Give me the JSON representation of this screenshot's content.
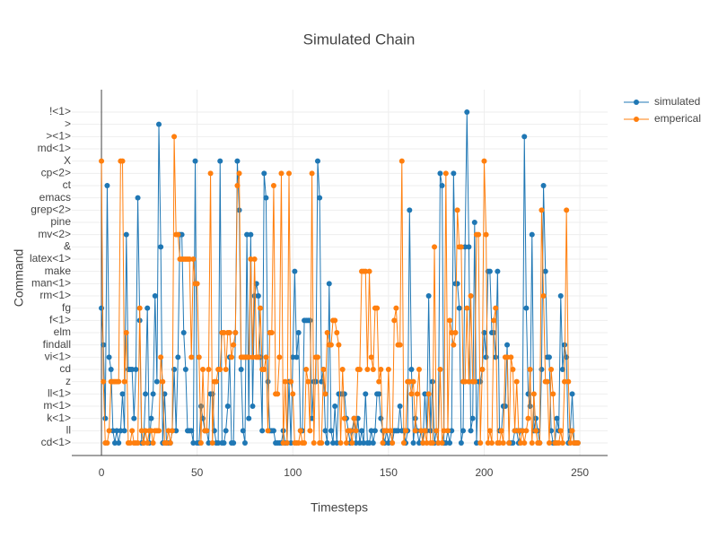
{
  "chart_data": {
    "type": "line",
    "title": "Simulated Chain",
    "x_label": "Timesteps",
    "y_label": "Command",
    "categories": [
      "cd<1>",
      "ll",
      "k<1>",
      "m<1>",
      "ll<1>",
      "z",
      "cd",
      "vi<1>",
      "findall",
      "elm",
      "f<1>",
      "fg",
      "rm<1>",
      "man<1>",
      "make",
      "latex<1>",
      "&",
      "mv<2>",
      "pine",
      "grep<2>",
      "emacs",
      "ct",
      "cp<2>",
      "X",
      "md<1>",
      "><1>",
      ">",
      "!<1>"
    ],
    "xlim": [
      -15.5,
      264.5
    ],
    "xticks": [
      0,
      50,
      100,
      150,
      200,
      250
    ],
    "grid": true,
    "legend": "top-right",
    "x": [
      0,
      1,
      2,
      3,
      4,
      5,
      6,
      7,
      8,
      9,
      10,
      11,
      12,
      13,
      14,
      15,
      16,
      17,
      18,
      19,
      20,
      21,
      22,
      23,
      24,
      25,
      26,
      27,
      28,
      29,
      30,
      31,
      32,
      33,
      34,
      35,
      36,
      37,
      38,
      39,
      40,
      41,
      42,
      43,
      44,
      45,
      46,
      47,
      48,
      49,
      50,
      51,
      52,
      53,
      54,
      55,
      56,
      57,
      58,
      59,
      60,
      61,
      62,
      63,
      64,
      65,
      66,
      67,
      68,
      69,
      70,
      71,
      72,
      73,
      74,
      75,
      76,
      77,
      78,
      79,
      80,
      81,
      82,
      83,
      84,
      85,
      86,
      87,
      88,
      89,
      90,
      91,
      92,
      93,
      94,
      95,
      96,
      97,
      98,
      99,
      100,
      101,
      102,
      103,
      104,
      105,
      106,
      107,
      108,
      109,
      110,
      111,
      112,
      113,
      114,
      115,
      116,
      117,
      118,
      119,
      120,
      121,
      122,
      123,
      124,
      125,
      126,
      127,
      128,
      129,
      130,
      131,
      132,
      133,
      134,
      135,
      136,
      137,
      138,
      139,
      140,
      141,
      142,
      143,
      144,
      145,
      146,
      147,
      148,
      149,
      150,
      151,
      152,
      153,
      154,
      155,
      156,
      157,
      158,
      159,
      160,
      161,
      162,
      163,
      164,
      165,
      166,
      167,
      168,
      169,
      170,
      171,
      172,
      173,
      174,
      175,
      176,
      177,
      178,
      179,
      180,
      181,
      182,
      183,
      184,
      185,
      186,
      187,
      188,
      189,
      190,
      191,
      192,
      193,
      194,
      195,
      196,
      197,
      198,
      199,
      200,
      201,
      202,
      203,
      204,
      205,
      206,
      207,
      208,
      209,
      210,
      211,
      212,
      213,
      214,
      215,
      216,
      217,
      218,
      219,
      220,
      221,
      222,
      223,
      224,
      225,
      226,
      227,
      228,
      229,
      230,
      231,
      232,
      233,
      234,
      235,
      236,
      237,
      238,
      239,
      240,
      241,
      242,
      243,
      244,
      245,
      246,
      247,
      248,
      249
    ],
    "series": [
      {
        "name": "simulated",
        "color": "#1f77b4",
        "values": [
          "fg",
          "findall",
          "k<1>",
          "ct",
          "vi<1>",
          "cd",
          "ll",
          "cd<1>",
          "ll",
          "cd<1>",
          "ll",
          "ll<1>",
          "ll",
          "mv<2>",
          "cd",
          "cd",
          "cd",
          "k<1>",
          "cd",
          "emacs",
          "f<1>",
          "cd<1>",
          "cd<1>",
          "ll<1>",
          "fg",
          "cd<1>",
          "k<1>",
          "ll<1>",
          "rm<1>",
          "z",
          ">",
          "&",
          "cd<1>",
          "ll<1>",
          "cd<1>",
          "cd<1>",
          "cd<1>",
          "ll",
          "cd",
          "ll",
          "vi<1>",
          "mv<2>",
          "mv<2>",
          "elm",
          "cd",
          "ll",
          "ll",
          "ll",
          "cd<1>",
          "X",
          "cd<1>",
          "cd<1>",
          "m<1>",
          "k<1>",
          "ll",
          "ll",
          "cd<1>",
          "ll<1>",
          "ll<1>",
          "ll",
          "cd<1>",
          "cd<1>",
          "X",
          "cd<1>",
          "cd<1>",
          "ll",
          "m<1>",
          "vi<1>",
          "cd<1>",
          "cd<1>",
          "elm",
          "X",
          "grep<2>",
          "cd",
          "ll",
          "cd<1>",
          "mv<2>",
          "k<1>",
          "mv<2>",
          "m<1>",
          "rm<1>",
          "man<1>",
          "rm<1>",
          "vi<1>",
          "ll",
          "cp<2>",
          "emacs",
          "z",
          "ll",
          "ll",
          "ll",
          "cd<1>",
          "cd<1>",
          "cd<1>",
          "cd<1>",
          "ll",
          "cd<1>",
          "cd<1>",
          "z",
          "cd<1>",
          "vi<1>",
          "make",
          "vi<1>",
          "elm",
          "ll",
          "ll",
          "f<1>",
          "f<1>",
          "f<1>",
          "f<1>",
          "k<1>",
          "z",
          "z",
          "X",
          "emacs",
          "z",
          "cd",
          "ll",
          "cd<1>",
          "man<1>",
          "ll",
          "cd<1>",
          "m<1>",
          "cd<1>",
          "ll<1>",
          "ll<1>",
          "ll<1>",
          "ll<1>",
          "k<1>",
          "ll",
          "cd<1>",
          "ll",
          "k<1>",
          "cd<1>",
          "k<1>",
          "cd<1>",
          "ll",
          "cd<1>",
          "ll<1>",
          "cd<1>",
          "cd<1>",
          "ll",
          "cd<1>",
          "ll",
          "ll<1>",
          "ll<1>",
          "k<1>",
          "ll",
          "cd<1>",
          "ll",
          "cd<1>",
          "ll",
          "cd<1>",
          "ll",
          "ll",
          "ll",
          "m<1>",
          "ll",
          "ll",
          "cd<1>",
          "ll",
          "grep<2>",
          "cd",
          "cd<1>",
          "k<1>",
          "ll",
          "cd<1>",
          "ll",
          "cd<1>",
          "ll<1>",
          "ll",
          "rm<1>",
          "ll",
          "z",
          "cd<1>",
          "ll",
          "cd<1>",
          "cp<2>",
          "ct",
          "cd<1>",
          "cd<1>",
          "ll",
          "cd<1>",
          "ll",
          "cp<2>",
          "man<1>",
          "man<1>",
          "fg",
          "cd<1>",
          "ll",
          "&",
          "!<1>",
          "&",
          "ll",
          "k<1>",
          "pine",
          "cd<1>",
          "z",
          "z",
          "cd",
          "elm",
          "vi<1>",
          "make",
          "make",
          "elm",
          "elm",
          "vi<1>",
          "make",
          "ll",
          "ll",
          "m<1>",
          "m<1>",
          "findall",
          "cd<1>",
          "cd<1>",
          "cd<1>",
          "ll",
          "ll",
          "cd<1>",
          "ll",
          "ll",
          "><1>",
          "fg",
          "ll<1>",
          "m<1>",
          "mv<2>",
          "ll",
          "k<1>",
          "ll",
          "cd<1>",
          "cd",
          "ct",
          "make",
          "vi<1>",
          "vi<1>",
          "ll",
          "cd<1>",
          "cd<1>",
          "k<1>",
          "ll",
          "rm<1>",
          "cd",
          "findall",
          "vi<1>",
          "cd<1>",
          "ll",
          "ll<1>",
          "cd<1>",
          "cd<1>",
          "cd<1>"
        ]
      },
      {
        "name": "emperical",
        "color": "#ff7f0e",
        "values": [
          "X",
          "z",
          "cd<1>",
          "cd<1>",
          "ll",
          "z",
          "z",
          "z",
          "z",
          "z",
          "X",
          "X",
          "z",
          "elm",
          "cd<1>",
          "cd<1>",
          "ll",
          "cd<1>",
          "cd<1>",
          "cd<1>",
          "fg",
          "ll",
          "cd<1>",
          "ll",
          "cd<1>",
          "ll",
          "ll",
          "cd<1>",
          "ll",
          "ll",
          "ll",
          "vi<1>",
          "z",
          "cd<1>",
          "cd<1>",
          "ll",
          "cd<1>",
          "ll",
          "><1>",
          "mv<2>",
          "mv<2>",
          "latex<1>",
          "latex<1>",
          "latex<1>",
          "latex<1>",
          "latex<1>",
          "latex<1>",
          "vi<1>",
          "latex<1>",
          "man<1>",
          "man<1>",
          "vi<1>",
          "cd<1>",
          "cd",
          "ll",
          "ll",
          "cd",
          "cp<2>",
          "cd<1>",
          "z",
          "z",
          "cd",
          "cd",
          "elm",
          "elm",
          "cd",
          "elm",
          "elm",
          "vi<1>",
          "findall",
          "elm",
          "ct",
          "cp<2>",
          "vi<1>",
          "vi<1>",
          "vi<1>",
          "vi<1>",
          "vi<1>",
          "latex<1>",
          "vi<1>",
          "latex<1>",
          "vi<1>",
          "vi<1>",
          "fg",
          "cd",
          "cd",
          "vi<1>",
          "ll",
          "elm",
          "elm",
          "ct",
          "ll<1>",
          "ll<1>",
          "vi<1>",
          "cp<2>",
          "cd<1>",
          "z",
          "cd<1>",
          "cp<2>",
          "z",
          "ll<1>",
          "cd<1>",
          "cd<1>",
          "cd<1>",
          "ll",
          "cd<1>",
          "cd<1>",
          "cd",
          "z",
          "ll",
          "cp<2>",
          "cd<1>",
          "vi<1>",
          "vi<1>",
          "cd<1>",
          "cd<1>",
          "cd",
          "ll<1>",
          "elm",
          "findall",
          "findall",
          "f<1>",
          "f<1>",
          "elm",
          "findall",
          "cd<1>",
          "cd",
          "k<1>",
          "cd<1>",
          "ll",
          "ll",
          "cd<1>",
          "k<1>",
          "ll",
          "cd",
          "cd",
          "make",
          "make",
          "make",
          "cd",
          "make",
          "vi<1>",
          "cd",
          "fg",
          "fg",
          "z",
          "cd",
          "cd<1>",
          "ll",
          "ll",
          "cd",
          "ll",
          "cd<1>",
          "f<1>",
          "fg",
          "findall",
          "findall",
          "X",
          "cd<1>",
          "ll",
          "z",
          "z",
          "ll<1>",
          "z",
          "ll",
          "ll<1>",
          "cd",
          "ll",
          "cd<1>",
          "ll",
          "cd<1>",
          "ll<1>",
          "cd<1>",
          "cd<1>",
          "&",
          "ll",
          "cd<1>",
          "cd",
          "cd<1>",
          "ll",
          "cp<2>",
          "ll",
          "f<1>",
          "elm",
          "findall",
          "elm",
          "grep<2>",
          "&",
          "&",
          "z",
          "z",
          "fg",
          "z",
          "rm<1>",
          "z",
          "z",
          "mv<2>",
          "mv<2>",
          "cd<1>",
          "cd",
          "X",
          "mv<2>",
          "cd<1>",
          "ll",
          "cd<1>",
          "f<1>",
          "fg",
          "cd<1>",
          "cd<1>",
          "ll",
          "cd<1>",
          "vi<1>",
          "vi<1>",
          "cd<1>",
          "vi<1>",
          "cd",
          "ll",
          "z",
          "ll",
          "cd<1>",
          "ll",
          "cd<1>",
          "ll",
          "k<1>",
          "cd",
          "cd<1>",
          "ll<1>",
          "ll",
          "cd<1>",
          "cd<1>",
          "grep<2>",
          "rm<1>",
          "z",
          "z",
          "cd<1>",
          "cd",
          "ll<1>",
          "cd<1>",
          "cd<1>",
          "cd<1>",
          "ll",
          "cd<1>",
          "z",
          "grep<2>",
          "z",
          "cd<1>",
          "ll",
          "cd<1>",
          "cd<1>",
          "cd<1>"
        ]
      }
    ]
  }
}
